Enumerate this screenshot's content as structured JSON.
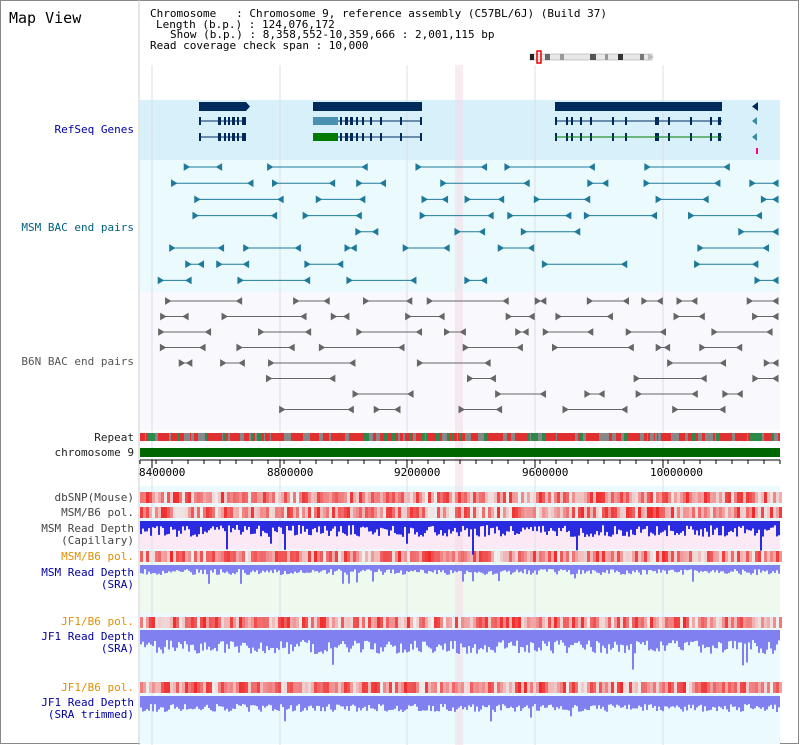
{
  "header": {
    "title": "Map View",
    "info": [
      "Chromosome   : Chromosome 9, reference assembly (C57BL/6J) (Build 37)",
      "Length (b.p.) : 124,076,172",
      "Show (b.p.) : 8,358,552-10,359,666 : 2,001,115 bp",
      "Read coverage check span : 10,000"
    ]
  },
  "tracks": {
    "refseq": "RefSeq Genes",
    "msm_bac": "MSM BAC end pairs",
    "b6n_bac": "B6N BAC end pairs",
    "repeat": "Repeat",
    "chrom": "chromosome 9",
    "dbsnp": "dbSNP(Mouse)",
    "msm_b6_pol_1": "MSM/B6 pol.",
    "msm_depth_cap_1": "MSM Read Depth",
    "msm_depth_cap_2": "(Capillary)",
    "msm_b6_pol_2": "MSM/B6 pol.",
    "msm_depth_sra_1": "MSM Read Depth",
    "msm_depth_sra_2": "(SRA)",
    "jf1_pol_1": "JF1/B6 pol.",
    "jf1_depth_1": "JF1 Read Depth",
    "jf1_depth_2": "(SRA)",
    "jf1_pol_2": "JF1/B6 pol.",
    "jf1_trim_1": "JF1 Read Depth",
    "jf1_trim_2": "(SRA trimmed)"
  },
  "axis": {
    "ticks": [
      "8400000",
      "8800000",
      "9200000",
      "9600000",
      "10000000"
    ]
  },
  "colors": {
    "gene": "#002a5c",
    "refseq_bg": "#d8f0fa",
    "msm_bac": "#1f7a9a",
    "b6n_bac": "#666666",
    "chrom": "#006600",
    "depth": "#2a2ae0",
    "depth_light": "#8080f0",
    "pol": "#e83030"
  }
}
